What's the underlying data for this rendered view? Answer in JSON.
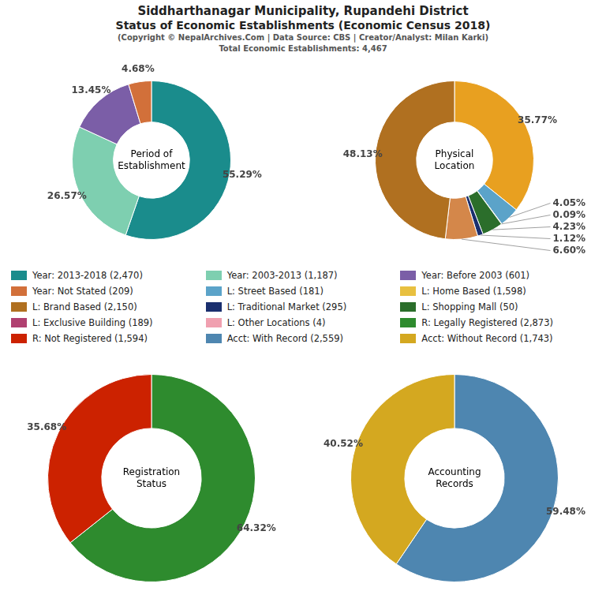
{
  "title": [
    "Siddharthanagar Municipality, Rupandehi District",
    "Status of Economic Establishments (Economic Census 2018)"
  ],
  "subtitle": [
    "(Copyright © NepalArchives.Com | Data Source: CBS | Creator/Analyst: Milan Karki)",
    "Total Economic Establishments: 4,467"
  ],
  "legend_items": [
    {
      "label": "Year: 2013-2018 (2,470)",
      "color": "#1a8c8c"
    },
    {
      "label": "Year: 2003-2013 (1,187)",
      "color": "#7ecfb0"
    },
    {
      "label": "Year: Before 2003 (601)",
      "color": "#7b5ea7"
    },
    {
      "label": "Year: Not Stated (209)",
      "color": "#d2703a"
    },
    {
      "label": "L: Street Based (181)",
      "color": "#5ba3c9"
    },
    {
      "label": "L: Home Based (1,598)",
      "color": "#e8c040"
    },
    {
      "label": "L: Brand Based (2,150)",
      "color": "#b07020"
    },
    {
      "label": "L: Traditional Market (295)",
      "color": "#1a2f6e"
    },
    {
      "label": "L: Shopping Mall (50)",
      "color": "#2b6e2b"
    },
    {
      "label": "L: Exclusive Building (189)",
      "color": "#b04070"
    },
    {
      "label": "L: Other Locations (4)",
      "color": "#f0a0b0"
    },
    {
      "label": "R: Legally Registered (2,873)",
      "color": "#2e8b2e"
    },
    {
      "label": "R: Not Registered (1,594)",
      "color": "#cc2200"
    },
    {
      "label": "Acct: With Record (2,559)",
      "color": "#4e86b0"
    },
    {
      "label": "Acct: Without Record (1,743)",
      "color": "#d4a820"
    }
  ],
  "chart_data": [
    {
      "type": "doughnut",
      "title": "Period of\nEstablishment",
      "values": [
        55.29,
        26.57,
        13.45,
        4.68
      ],
      "value_labels": [
        "55.29%",
        "26.57%",
        "13.45%",
        "4.68%"
      ],
      "colors": [
        "#1a8c8c",
        "#7ecfb0",
        "#7b5ea7",
        "#d2703a"
      ],
      "data_labels": true
    },
    {
      "type": "doughnut",
      "title": "Physical\nLocation",
      "values": [
        35.77,
        4.05,
        0.09,
        4.23,
        1.12,
        6.6,
        48.13
      ],
      "value_labels": [
        "35.77%",
        "4.05%",
        "0.09%",
        "4.23%",
        "1.12%",
        "6.60%",
        "48.13%"
      ],
      "colors": [
        "#e8a020",
        "#5ba3c9",
        "#b04070",
        "#2b6e2b",
        "#1a2f6e",
        "#d4874a",
        "#b07020"
      ],
      "data_labels": true
    },
    {
      "type": "doughnut",
      "title": "Registration\nStatus",
      "values": [
        64.32,
        35.68
      ],
      "value_labels": [
        "64.32%",
        "35.68%"
      ],
      "colors": [
        "#2e8b2e",
        "#cc2200"
      ],
      "data_labels": true
    },
    {
      "type": "doughnut",
      "title": "Accounting\nRecords",
      "values": [
        59.48,
        40.52
      ],
      "value_labels": [
        "59.48%",
        "40.52%"
      ],
      "colors": [
        "#4e86b0",
        "#d4a820"
      ],
      "data_labels": true
    }
  ]
}
